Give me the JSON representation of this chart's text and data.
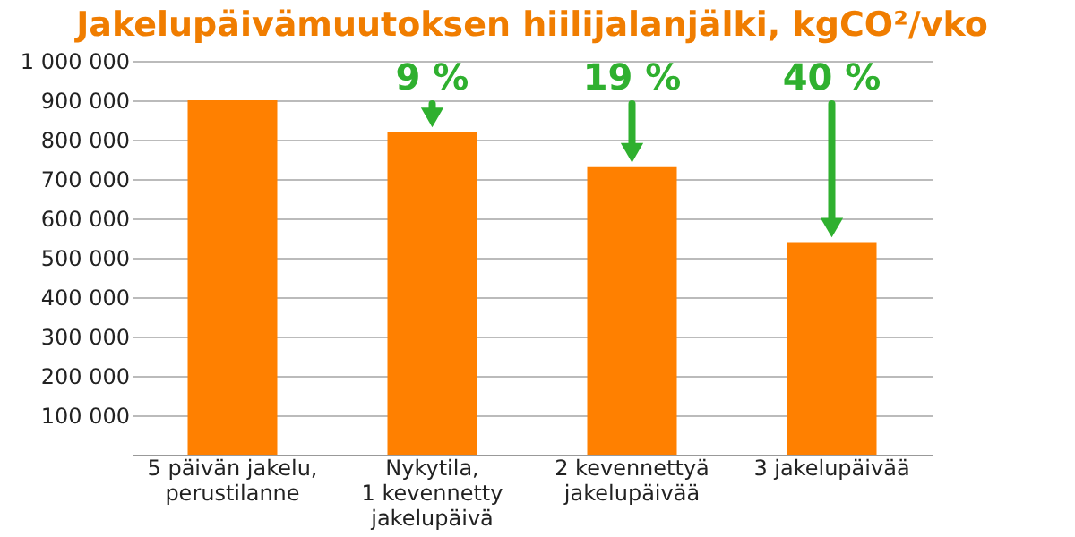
{
  "chart_data": {
    "type": "bar",
    "title": "Jakelupäivämuutoksen hiilijalanjälki, kgCO²/vko",
    "categories": [
      "5 päivän jakelu,\nperustilanne",
      "Nykytila,\n1 kevennetty\njakelupäivä",
      "2 kevennettyä\njakelupäivää",
      "3 jakelupäivää"
    ],
    "values": [
      900000,
      820000,
      730000,
      540000
    ],
    "color": "#ff8000",
    "ylim": [
      0,
      1000000
    ],
    "yticks": [
      {
        "value": 100000,
        "label": "100 000"
      },
      {
        "value": 200000,
        "label": "200 000"
      },
      {
        "value": 300000,
        "label": "300 000"
      },
      {
        "value": 400000,
        "label": "400 000"
      },
      {
        "value": 500000,
        "label": "500 000"
      },
      {
        "value": 600000,
        "label": "600 000"
      },
      {
        "value": 700000,
        "label": "700 000"
      },
      {
        "value": 800000,
        "label": "800 000"
      },
      {
        "value": 900000,
        "label": "900 000"
      },
      {
        "value": 1000000,
        "label": "1 000 000"
      }
    ],
    "grid": "y",
    "annotations": [
      {
        "text": "9 %",
        "x": "Nykytila,\n1 kevennetty\njakelupäivä"
      },
      {
        "text": "19 %",
        "x": "2 kevennettyä\njakelupäivää"
      },
      {
        "text": "40 %",
        "x": "3 jakelupäivää"
      }
    ]
  }
}
